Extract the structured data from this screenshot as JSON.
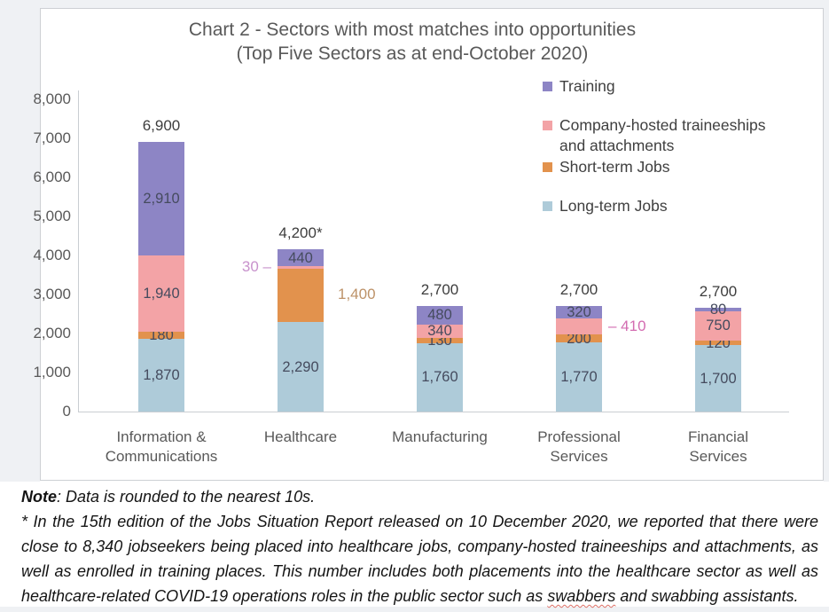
{
  "chart_data": {
    "type": "bar",
    "stacked": true,
    "title": "Chart 2 - Sectors with most matches into opportunities",
    "subtitle": "(Top Five Sectors as at end-October 2020)",
    "categories": [
      "Information & Communications",
      "Healthcare",
      "Manufacturing",
      "Professional Services",
      "Financial Services"
    ],
    "categories_display": [
      "Information &\nCommunications",
      "Healthcare",
      "Manufacturing",
      "Professional\nServices",
      "Financial\nServices"
    ],
    "series": [
      {
        "name": "Long-term Jobs",
        "color": "#aecbd9",
        "values": [
          1870,
          2290,
          1760,
          1770,
          1700
        ],
        "labels": [
          "1,870",
          "2,290",
          "1,760",
          "1,770",
          "1,700"
        ]
      },
      {
        "name": "Short-term Jobs",
        "color": "#e2924d",
        "values": [
          180,
          1400,
          130,
          200,
          120
        ],
        "labels": [
          "180",
          "1,400",
          "130",
          "200",
          "120"
        ]
      },
      {
        "name": "Company-hosted traineeships and attachments",
        "color": "#f3a3a6",
        "values": [
          1940,
          30,
          340,
          410,
          750
        ],
        "labels": [
          "1,940",
          "30",
          "340",
          "410",
          "750"
        ]
      },
      {
        "name": "Training",
        "color": "#8d85c5",
        "values": [
          2910,
          440,
          480,
          320,
          80
        ],
        "labels": [
          "2,910",
          "440",
          "480",
          "320",
          "80"
        ]
      }
    ],
    "totals": [
      "6,900",
      "4,200*",
      "2,700",
      "2,700",
      "2,700"
    ],
    "ylim": [
      0,
      8000
    ],
    "yticks": [
      {
        "value": 8000,
        "label": "8,000"
      },
      {
        "value": 7000,
        "label": "7,000"
      },
      {
        "value": 6000,
        "label": "6,000"
      },
      {
        "value": 5000,
        "label": "5,000"
      },
      {
        "value": 4000,
        "label": "4,000"
      },
      {
        "value": 3000,
        "label": "3,000"
      },
      {
        "value": 2000,
        "label": "2,000"
      },
      {
        "value": 1000,
        "label": "1,000"
      },
      {
        "value": 0,
        "label": "0"
      }
    ],
    "grid": false,
    "legend_position": "top-right",
    "callouts": [
      {
        "category_index": 1,
        "series_index": 2,
        "text": "30",
        "side": "left",
        "dash": true,
        "color": "#c892cc"
      },
      {
        "category_index": 1,
        "series_index": 1,
        "text": "1,400",
        "side": "right",
        "dash": false,
        "color": "#bd9268"
      },
      {
        "category_index": 3,
        "series_index": 2,
        "text": "410",
        "side": "right",
        "dash": true,
        "color": "#d36cb1"
      }
    ]
  },
  "note": {
    "label": "Note",
    "text": ": Data is rounded to the nearest 10s."
  },
  "footnote": {
    "part1": "* In the 15th edition of the Jobs Situation Report released on 10 December 2020, we reported that there were close to 8,340 jobseekers being placed into healthcare jobs, company-hosted traineeships and attachments, as well as enrolled in training places. This number includes both placements into the healthcare sector as well as healthcare-related COVID-19 operations roles in the public sector such as ",
    "swabbers": "swabbers",
    "part2": " and swabbing assistants."
  }
}
